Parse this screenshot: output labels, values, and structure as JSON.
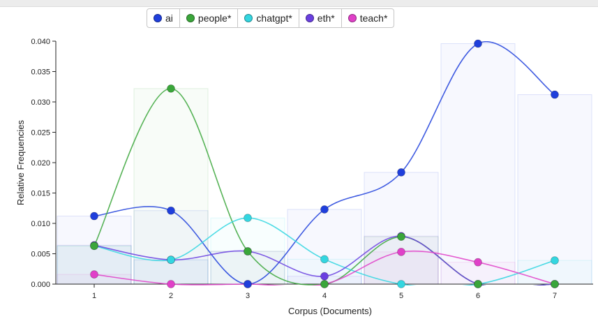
{
  "chart_data": {
    "type": "line",
    "xlabel": "Corpus (Documents)",
    "ylabel": "Relative Frequencies",
    "categories": [
      "1",
      "2",
      "3",
      "4",
      "5",
      "6",
      "7"
    ],
    "ylim": [
      0,
      0.04
    ],
    "y_ticks": [
      "0.000",
      "0.005",
      "0.010",
      "0.015",
      "0.020",
      "0.025",
      "0.030",
      "0.035",
      "0.040"
    ],
    "grid": false,
    "legend_position": "top-center",
    "series": [
      {
        "name": "ai",
        "color": "#1f3fdc",
        "values": [
          0.0112,
          0.0121,
          0.0,
          0.0123,
          0.0184,
          0.0396,
          0.0312
        ]
      },
      {
        "name": "people*",
        "color": "#3aa63a",
        "values": [
          0.0063,
          0.0322,
          0.0054,
          0.0,
          0.0078,
          0.0,
          0.0
        ]
      },
      {
        "name": "chatgpt*",
        "color": "#33d6e0",
        "values": [
          0.0063,
          0.004,
          0.0109,
          0.0041,
          0.0,
          0.0,
          0.0039
        ]
      },
      {
        "name": "eth*",
        "color": "#6a3fe0",
        "values": [
          0.0064,
          0.004,
          0.0054,
          0.0013,
          0.0079,
          0.0,
          0.0
        ]
      },
      {
        "name": "teach*",
        "color": "#e040c8",
        "values": [
          0.0016,
          0.0,
          0.0,
          0.0,
          0.0053,
          0.0036,
          0.0
        ]
      }
    ]
  }
}
